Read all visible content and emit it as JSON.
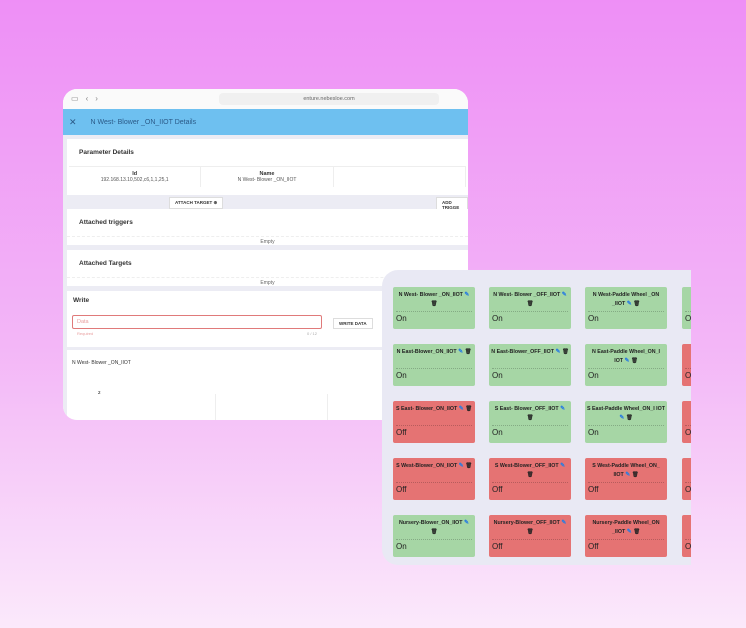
{
  "browser": {
    "url": "enture.nebesloe.com"
  },
  "header": {
    "title": "N West- Blower _ON_IIOT Details"
  },
  "parameter_details": {
    "title": "Parameter Details",
    "columns": [
      {
        "label": "Id",
        "value": "192.168.13.10,502,c6,1,1,25,1"
      },
      {
        "label": "Name",
        "value": "N West- Blower _ON_IIOT"
      }
    ]
  },
  "buttons": {
    "attach_target": "ATTACH TARGET",
    "add_trigger": "ADD TRIGGE",
    "write_data": "WRITE DATA"
  },
  "triggers": {
    "title": "Attached triggers",
    "empty": "Empty"
  },
  "targets": {
    "title": "Attached Targets",
    "empty": "Empty"
  },
  "write": {
    "title": "Write",
    "placeholder": "Data",
    "helper": "Required",
    "counter": "0 / 12"
  },
  "chart": {
    "title": "N West- Blower _ON_IIOT",
    "tick": "2"
  },
  "tiles": [
    {
      "name": "N West- Blower _ON_IIOT",
      "status": "On",
      "on": true
    },
    {
      "name": "N West- Blower _OFF_IIOT",
      "status": "On",
      "on": true
    },
    {
      "name": "N West-Paddle Wheel _ON _IIOT",
      "status": "On",
      "on": true
    },
    {
      "name": "N",
      "status": "O",
      "on": true
    },
    {
      "name": "N East-Blower_ON_IIOT",
      "status": "On",
      "on": true
    },
    {
      "name": "N East-Blower_OFF_IIOT",
      "status": "On",
      "on": true
    },
    {
      "name": "N East-Paddle Wheel_ON_I IOT",
      "status": "On",
      "on": true
    },
    {
      "name": "N",
      "status": "O",
      "on": false
    },
    {
      "name": "S East- Blower_ON_IIOT",
      "status": "Off",
      "on": false
    },
    {
      "name": "S East- Blower_OFF_IIOT",
      "status": "On",
      "on": true
    },
    {
      "name": "S East-Paddle Wheel_ON_I IOT",
      "status": "On",
      "on": true
    },
    {
      "name": "S",
      "status": "O",
      "on": false
    },
    {
      "name": "S West-Blower_ON_IIOT",
      "status": "Off",
      "on": false
    },
    {
      "name": "S West-Blower_OFF_IIOT",
      "status": "Off",
      "on": false
    },
    {
      "name": "S West-Paddle Wheel_ON_ IIOT",
      "status": "Off",
      "on": false
    },
    {
      "name": "S",
      "status": "O",
      "on": false
    },
    {
      "name": "Nursery-Blower_ON_IIOT",
      "status": "On",
      "on": true
    },
    {
      "name": "Nursery-Blower_OFF_IIOT",
      "status": "Off",
      "on": false
    },
    {
      "name": "Nursery-Paddle Wheel_ON _IIOT",
      "status": "Off",
      "on": false
    },
    {
      "name": "N",
      "status": "O",
      "on": false
    }
  ]
}
